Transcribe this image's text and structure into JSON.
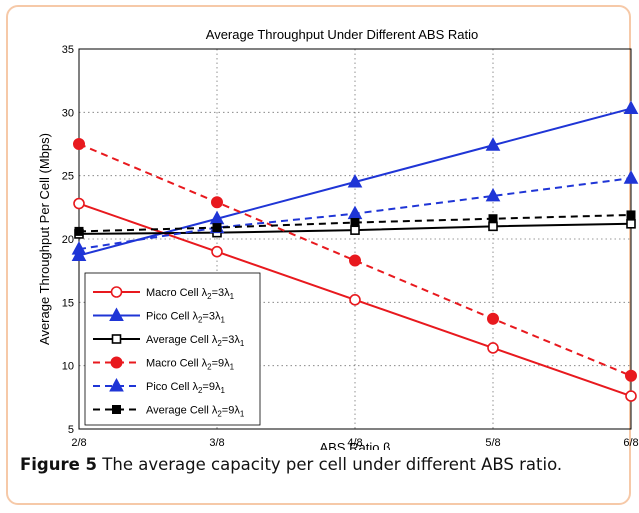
{
  "caption": {
    "label": "Figure 5",
    "text": "The average capacity per cell under different ABS ratio."
  },
  "chart_data": {
    "type": "line",
    "title": "Average Throughput Under Different ABS Ratio",
    "xlabel": "ABS Ratio β",
    "ylabel": "Average Throughput Per Cell (Mbps)",
    "categories": [
      "2/8",
      "3/8",
      "4/8",
      "5/8",
      "6/8"
    ],
    "x": [
      0.25,
      0.375,
      0.5,
      0.625,
      0.75
    ],
    "xlim": [
      0.25,
      0.75
    ],
    "ylim": [
      5,
      35
    ],
    "yticks": [
      5,
      10,
      15,
      20,
      25,
      30,
      35
    ],
    "grid": true,
    "legend_position": "lower-left",
    "series": [
      {
        "name": "Macro Cell λ2=3λ1",
        "legend": [
          "Macro Cell λ",
          "2",
          "=3λ",
          "1"
        ],
        "color": "#e8191e",
        "dash": false,
        "marker": "circle-open",
        "values": [
          22.8,
          19.0,
          15.2,
          11.4,
          7.6
        ]
      },
      {
        "name": "Pico Cell λ2=3λ1",
        "legend": [
          "Pico Cell λ",
          "2",
          "=3λ",
          "1"
        ],
        "color": "#1f35d6",
        "dash": false,
        "marker": "triangle-filled",
        "values": [
          18.7,
          21.6,
          24.5,
          27.4,
          30.3
        ]
      },
      {
        "name": "Average Cell λ2=3λ1",
        "legend": [
          "Average Cell λ",
          "2",
          "=3λ",
          "1"
        ],
        "color": "#000000",
        "dash": false,
        "marker": "square-open",
        "values": [
          20.4,
          20.5,
          20.7,
          21.0,
          21.2
        ]
      },
      {
        "name": "Macro Cell λ2=9λ1",
        "legend": [
          "Macro Cell λ",
          "2",
          "=9λ",
          "1"
        ],
        "color": "#e8191e",
        "dash": true,
        "marker": "circle-filled",
        "values": [
          27.5,
          22.9,
          18.3,
          13.7,
          9.2
        ]
      },
      {
        "name": "Pico Cell λ2=9λ1",
        "legend": [
          "Pico Cell λ",
          "2",
          "=9λ",
          "1"
        ],
        "color": "#1f35d6",
        "dash": true,
        "marker": "triangle-filled",
        "values": [
          19.2,
          20.9,
          22.0,
          23.4,
          24.8
        ]
      },
      {
        "name": "Average Cell λ2=9λ1",
        "legend": [
          "Average Cell λ",
          "2",
          "=9λ",
          "1"
        ],
        "color": "#000000",
        "dash": true,
        "marker": "square-filled",
        "values": [
          20.6,
          20.9,
          21.3,
          21.6,
          21.9
        ]
      }
    ]
  }
}
